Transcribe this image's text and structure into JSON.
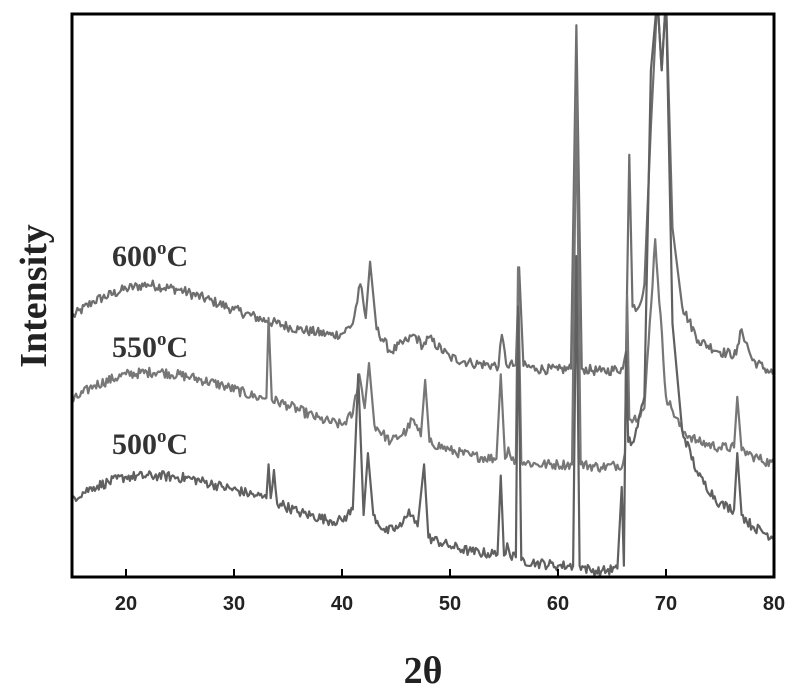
{
  "chart_data": {
    "type": "line",
    "xlabel": "2θ",
    "ylabel": "Intensity",
    "xlim": [
      15,
      80
    ],
    "ylim": [
      0,
      1
    ],
    "x_ticks": [
      20,
      30,
      40,
      50,
      60,
      70,
      80
    ],
    "grid": false,
    "legend": "none",
    "series": [
      {
        "name": "600°C",
        "label_main": "600",
        "label_sup": "o",
        "label_unit": "C",
        "color": "#6e6e6e",
        "x": [
          15,
          17,
          20,
          22,
          25,
          28,
          30,
          33,
          36,
          39,
          40,
          41,
          41.7,
          42.2,
          42.6,
          43.2,
          44.5,
          46,
          46.7,
          47.5,
          48,
          50,
          52,
          54.5,
          54.8,
          55.2,
          56.1,
          56.4,
          56.8,
          58,
          60,
          61.2,
          61.7,
          62.2,
          64,
          66,
          66.3,
          66.6,
          66.9,
          67.5,
          68,
          68.6,
          69.2,
          69.6,
          70,
          70.6,
          71.5,
          73,
          75,
          76.5,
          77,
          78,
          80
        ],
        "y": [
          0.462,
          0.49,
          0.512,
          0.52,
          0.51,
          0.49,
          0.475,
          0.455,
          0.44,
          0.43,
          0.432,
          0.45,
          0.52,
          0.46,
          0.56,
          0.44,
          0.4,
          0.42,
          0.43,
          0.41,
          0.425,
          0.39,
          0.38,
          0.375,
          0.43,
          0.378,
          0.376,
          0.55,
          0.375,
          0.37,
          0.368,
          0.37,
          0.98,
          0.37,
          0.365,
          0.37,
          0.4,
          0.75,
          0.48,
          0.48,
          0.52,
          0.8,
          1.03,
          0.9,
          1.03,
          0.62,
          0.48,
          0.42,
          0.4,
          0.395,
          0.44,
          0.385,
          0.36
        ]
      },
      {
        "name": "550°C",
        "label_main": "550",
        "label_sup": "o",
        "label_unit": "C",
        "color": "#777777",
        "x": [
          15,
          17,
          20,
          23,
          26,
          29,
          32,
          33,
          33.2,
          33.5,
          35,
          38,
          40,
          41,
          41.6,
          42.1,
          42.5,
          43,
          44.5,
          46,
          46.5,
          47.3,
          47.7,
          48.1,
          50,
          52,
          54.3,
          54.7,
          55.1,
          55.4,
          55.7,
          56.1,
          56.3,
          56.6,
          58,
          60,
          61.3,
          61.7,
          62.1,
          64,
          66,
          66.2,
          66.4,
          66.6,
          67,
          68,
          69,
          70,
          70.5,
          71.5,
          73,
          75,
          76.3,
          76.6,
          77,
          78,
          80
        ],
        "y": [
          0.312,
          0.34,
          0.36,
          0.365,
          0.355,
          0.34,
          0.32,
          0.318,
          0.46,
          0.315,
          0.305,
          0.28,
          0.27,
          0.29,
          0.36,
          0.3,
          0.38,
          0.27,
          0.24,
          0.26,
          0.28,
          0.25,
          0.35,
          0.24,
          0.225,
          0.215,
          0.21,
          0.36,
          0.21,
          0.23,
          0.208,
          0.21,
          0.55,
          0.205,
          0.2,
          0.2,
          0.2,
          0.85,
          0.2,
          0.195,
          0.2,
          0.22,
          0.5,
          0.28,
          0.28,
          0.3,
          0.6,
          0.32,
          0.3,
          0.26,
          0.24,
          0.23,
          0.23,
          0.32,
          0.225,
          0.215,
          0.2
        ]
      },
      {
        "name": "500°C",
        "label_main": "500",
        "label_sup": "o",
        "label_unit": "C",
        "color": "#606060",
        "x": [
          15,
          17,
          20,
          23,
          26,
          29,
          32,
          33,
          33.2,
          33.4,
          33.7,
          34,
          34.3,
          36,
          39,
          40,
          41,
          41.5,
          42,
          42.4,
          42.9,
          44,
          45.5,
          46.2,
          47,
          47.6,
          48,
          50,
          52,
          54.4,
          54.7,
          55,
          55.3,
          55.6,
          56.1,
          56.3,
          56.6,
          58,
          60,
          61.4,
          61.7,
          62,
          63,
          64,
          65.5,
          65.9,
          66.1,
          66.3,
          66.5,
          67,
          68,
          68.6,
          69.2,
          69.6,
          70,
          70.6,
          71.5,
          73,
          75,
          76.3,
          76.6,
          77,
          78,
          80
        ],
        "y": [
          0.14,
          0.16,
          0.178,
          0.18,
          0.175,
          0.16,
          0.145,
          0.14,
          0.2,
          0.14,
          0.19,
          0.13,
          0.13,
          0.115,
          0.1,
          0.1,
          0.12,
          0.36,
          0.11,
          0.22,
          0.11,
          0.08,
          0.09,
          0.12,
          0.09,
          0.2,
          0.07,
          0.055,
          0.045,
          0.04,
          0.18,
          0.038,
          0.06,
          0.035,
          0.035,
          0.48,
          0.03,
          0.025,
          0.02,
          0.02,
          0.57,
          0.02,
          0.012,
          0.01,
          0.015,
          0.16,
          0.02,
          0.4,
          0.24,
          0.24,
          0.32,
          0.9,
          1.03,
          0.9,
          1.03,
          0.45,
          0.26,
          0.18,
          0.13,
          0.12,
          0.22,
          0.11,
          0.09,
          0.07
        ]
      }
    ]
  }
}
